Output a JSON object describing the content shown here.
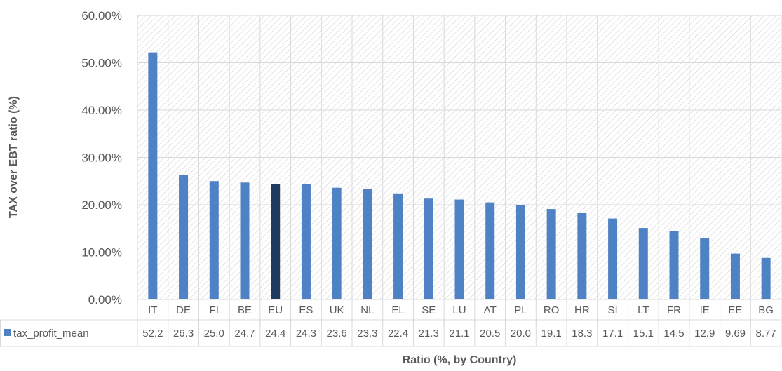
{
  "chart_data": {
    "type": "bar",
    "title": "",
    "xlabel": "Ratio (%, by Country)",
    "ylabel": "TAX over EBT ratio (%)",
    "ylim": [
      0,
      60
    ],
    "yticks": [
      "0.00%",
      "10.00%",
      "20.00%",
      "30.00%",
      "40.00%",
      "50.00%",
      "60.00%"
    ],
    "categories": [
      "IT",
      "DE",
      "FI",
      "BE",
      "EU",
      "ES",
      "UK",
      "NL",
      "EL",
      "SE",
      "LU",
      "AT",
      "PL",
      "RO",
      "HR",
      "SI",
      "LT",
      "FR",
      "IE",
      "EE",
      "BG"
    ],
    "series": [
      {
        "name": "tax_profit_mean",
        "values": [
          52.2,
          26.3,
          25.0,
          24.7,
          24.4,
          24.3,
          23.6,
          23.3,
          22.4,
          21.3,
          21.1,
          20.5,
          20.0,
          19.1,
          18.3,
          17.1,
          15.1,
          14.5,
          12.9,
          9.69,
          8.77
        ],
        "labels": [
          "52.2",
          "26.3",
          "25.0",
          "24.7",
          "24.4",
          "24.3",
          "23.6",
          "23.3",
          "22.4",
          "21.3",
          "21.1",
          "20.5",
          "20.0",
          "19.1",
          "18.3",
          "17.1",
          "15.1",
          "14.5",
          "12.9",
          "9.69",
          "8.77"
        ]
      }
    ],
    "highlight_category": "EU",
    "colors": {
      "bar": "#4f81c5",
      "highlight": "#1f3a5f",
      "grid": "#d9d9d9",
      "text": "#595959"
    },
    "grid": true,
    "legend": "data-table-below"
  }
}
